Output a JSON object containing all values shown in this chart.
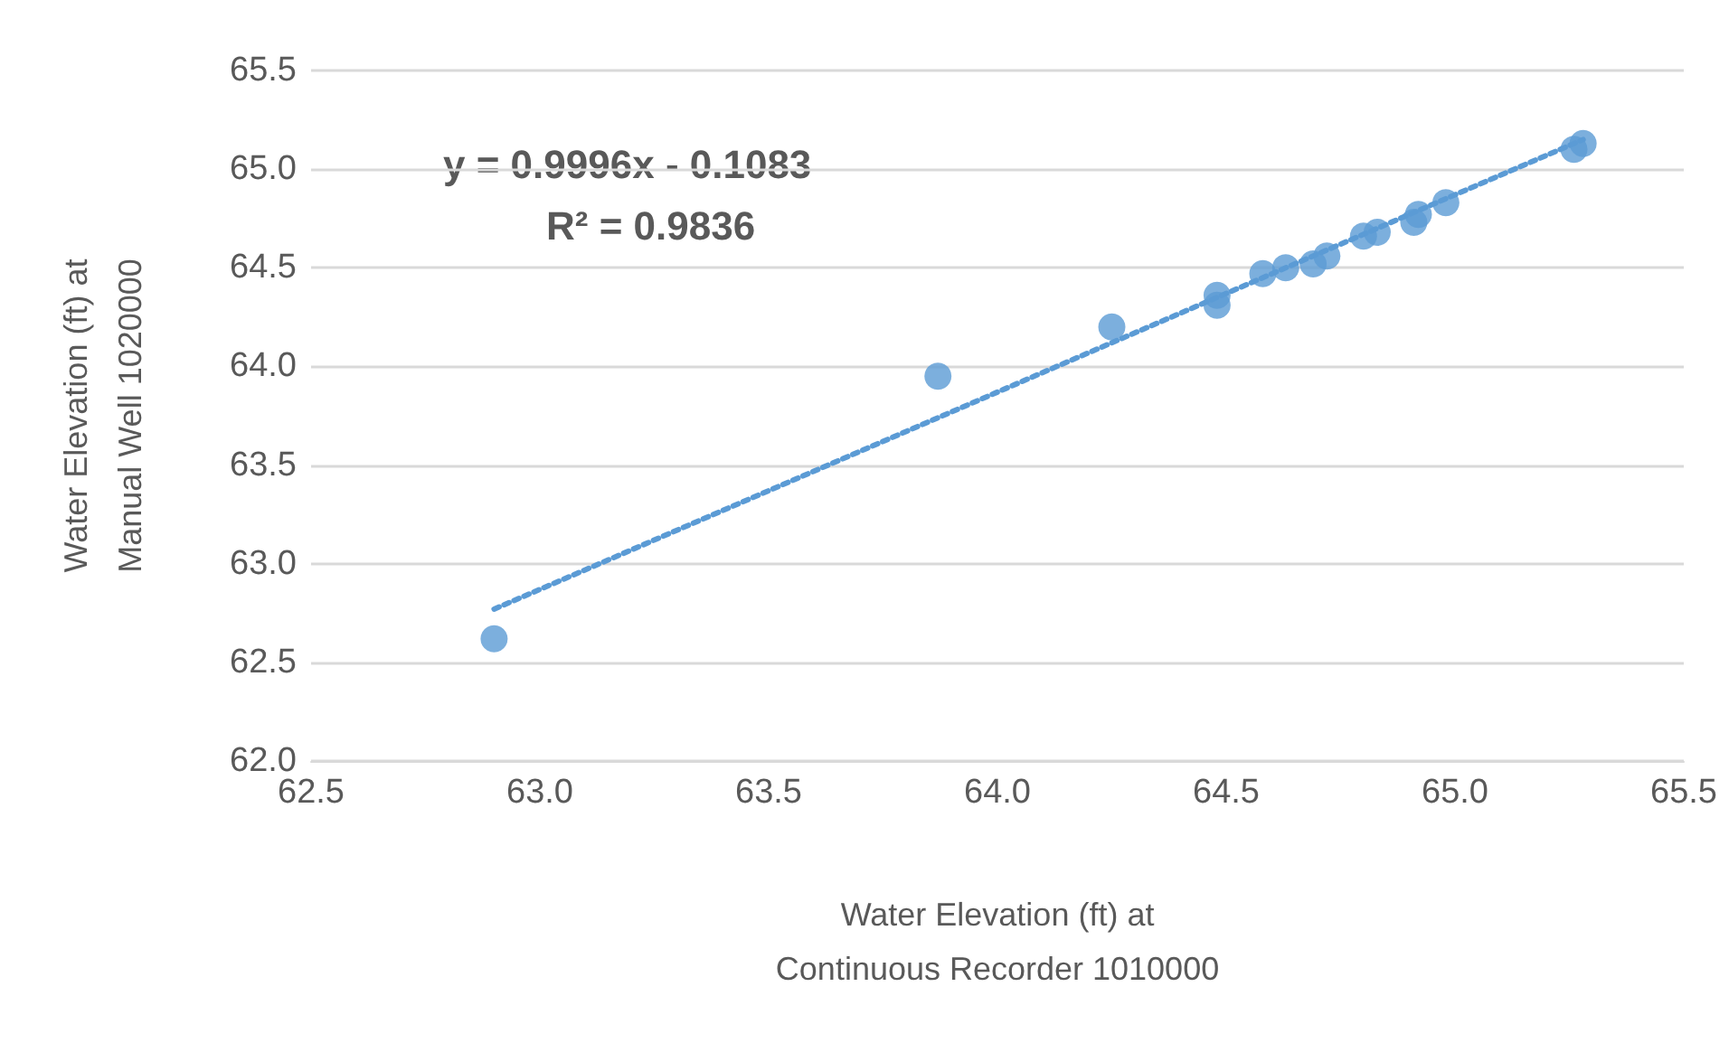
{
  "chart_data": {
    "type": "scatter",
    "xlabel": "Water Elevation (ft) at\nContinuous Recorder 1010000",
    "ylabel": "Water Elevation (ft) at\nManual Well 1020000",
    "xlim": [
      62.5,
      65.5
    ],
    "xticks": [
      62.5,
      {
        "value": 63,
        "label": "63.0"
      },
      63.5,
      {
        "value": 64,
        "label": "64.0"
      },
      64.5,
      {
        "value": 65,
        "label": "65.0"
      },
      65.5
    ],
    "ylim": [
      62.0,
      65.5
    ],
    "yticks": [
      {
        "value": 62,
        "label": "62.0"
      },
      62.5,
      {
        "value": 63,
        "label": "63.0"
      },
      63.5,
      {
        "value": 64,
        "label": "64.0"
      },
      64.5,
      {
        "value": 65,
        "label": "65.0"
      },
      65.5
    ],
    "grid": "y",
    "marker": "circle",
    "annotations": [
      "y = 0.9996x - 0.1083",
      "R² = 0.9836"
    ],
    "series": [
      {
        "color": "#5b9bd5",
        "x": [
          62.9,
          63.87,
          64.25,
          64.48,
          64.48,
          64.58,
          64.63,
          64.69,
          64.72,
          64.8,
          64.83,
          64.91,
          64.92,
          64.98,
          65.26,
          65.28
        ],
        "values": [
          62.62,
          63.95,
          64.2,
          64.36,
          64.31,
          64.47,
          64.5,
          64.52,
          64.56,
          64.66,
          64.68,
          64.73,
          64.77,
          64.83,
          65.1,
          65.13
        ]
      },
      {
        "type": "line",
        "color": "#5b9bd5",
        "line_style": "dotted",
        "marker": "none",
        "x": [
          62.9,
          65.28
        ],
        "values": [
          62.77,
          65.15
        ]
      }
    ]
  }
}
